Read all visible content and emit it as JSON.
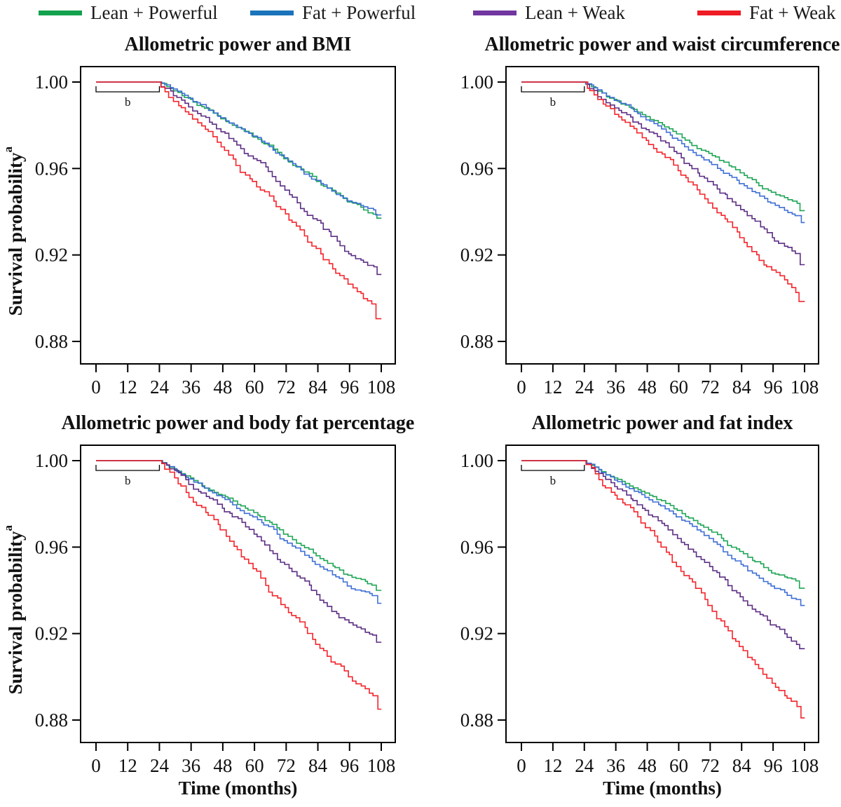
{
  "figure": {
    "background": "#ffffff"
  },
  "legend": {
    "items": [
      {
        "label": "Lean + Powerful",
        "color": "#12a24d"
      },
      {
        "label": "Fat + Powerful",
        "color": "#1b74bb"
      },
      {
        "label": "Lean + Weak",
        "color": "#7136a0"
      },
      {
        "label": "Fat + Weak",
        "color": "#ee1c25"
      }
    ]
  },
  "axes": {
    "y_label": "Survival probability",
    "y_label_superscript": "a",
    "x_label": "Time (months)",
    "y_ticks": [
      "1.00",
      "0.96",
      "0.92",
      "0.88"
    ],
    "x_ticks": [
      0,
      12,
      24,
      36,
      48,
      60,
      72,
      84,
      96,
      108
    ],
    "x_range": [
      0,
      108
    ],
    "y_range": [
      0.87,
      1.005
    ]
  },
  "annotation": {
    "label": "b",
    "span_months": [
      0,
      24
    ]
  },
  "chart_data": [
    {
      "type": "line",
      "km_step": true,
      "title": "Allometric power and BMI",
      "x_control": [
        0,
        24,
        36,
        48,
        60,
        72,
        84,
        96,
        107
      ],
      "series": [
        {
          "name": "Lean + Powerful",
          "line_color": "#1ea556",
          "values": [
            1.0,
            1.0,
            0.992,
            0.983,
            0.9745,
            0.9645,
            0.954,
            0.9445,
            0.937
          ]
        },
        {
          "name": "Fat + Powerful",
          "line_color": "#3f6fd4",
          "values": [
            1.0,
            1.0,
            0.9925,
            0.9835,
            0.975,
            0.965,
            0.9545,
            0.945,
            0.9385
          ]
        },
        {
          "name": "Lean + Weak",
          "line_color": "#5c2d84",
          "values": [
            1.0,
            1.0,
            0.9885,
            0.977,
            0.9645,
            0.95,
            0.936,
            0.9205,
            0.911
          ]
        },
        {
          "name": "Fat + Weak",
          "line_color": "#f3242b",
          "values": [
            1.0,
            1.0,
            0.985,
            0.97,
            0.954,
            0.939,
            0.923,
            0.9065,
            0.8905
          ]
        }
      ]
    },
    {
      "type": "line",
      "km_step": true,
      "title": "Allometric power and waist circumference",
      "x_control": [
        0,
        24,
        36,
        48,
        60,
        72,
        84,
        96,
        107
      ],
      "series": [
        {
          "name": "Lean + Powerful",
          "line_color": "#1ea556",
          "values": [
            1.0,
            1.0,
            0.992,
            0.984,
            0.976,
            0.967,
            0.958,
            0.949,
            0.9405
          ]
        },
        {
          "name": "Fat + Powerful",
          "line_color": "#3f6fd4",
          "values": [
            1.0,
            1.0,
            0.9915,
            0.9825,
            0.973,
            0.963,
            0.953,
            0.944,
            0.935
          ]
        },
        {
          "name": "Lean + Weak",
          "line_color": "#5c2d84",
          "values": [
            1.0,
            1.0,
            0.988,
            0.978,
            0.967,
            0.954,
            0.941,
            0.928,
            0.9155
          ]
        },
        {
          "name": "Fat + Weak",
          "line_color": "#f3242b",
          "values": [
            1.0,
            1.0,
            0.985,
            0.973,
            0.959,
            0.944,
            0.928,
            0.913,
            0.8985
          ]
        }
      ]
    },
    {
      "type": "line",
      "km_step": true,
      "title": "Allometric power and body fat percentage",
      "x_control": [
        0,
        24,
        36,
        48,
        60,
        72,
        84,
        96,
        107
      ],
      "series": [
        {
          "name": "Lean + Powerful",
          "line_color": "#1ea556",
          "values": [
            1.0,
            1.0,
            0.992,
            0.984,
            0.976,
            0.966,
            0.956,
            0.947,
            0.94
          ]
        },
        {
          "name": "Fat + Powerful",
          "line_color": "#3f6fd4",
          "values": [
            1.0,
            1.0,
            0.9915,
            0.983,
            0.974,
            0.963,
            0.952,
            0.942,
            0.934
          ]
        },
        {
          "name": "Lean + Weak",
          "line_color": "#5c2d84",
          "values": [
            1.0,
            1.0,
            0.989,
            0.978,
            0.966,
            0.952,
            0.938,
            0.925,
            0.916
          ]
        },
        {
          "name": "Fat + Weak",
          "line_color": "#f3242b",
          "values": [
            1.0,
            1.0,
            0.983,
            0.968,
            0.95,
            0.932,
            0.915,
            0.9,
            0.885
          ]
        }
      ]
    },
    {
      "type": "line",
      "km_step": true,
      "title": "Allometric power and fat index",
      "x_control": [
        0,
        24,
        36,
        48,
        60,
        72,
        84,
        96,
        107
      ],
      "series": [
        {
          "name": "Lean + Powerful",
          "line_color": "#1ea556",
          "values": [
            1.0,
            1.0,
            0.992,
            0.985,
            0.977,
            0.968,
            0.958,
            0.948,
            0.941
          ]
        },
        {
          "name": "Fat + Powerful",
          "line_color": "#3f6fd4",
          "values": [
            1.0,
            1.0,
            0.991,
            0.983,
            0.974,
            0.964,
            0.952,
            0.942,
            0.933
          ]
        },
        {
          "name": "Lean + Weak",
          "line_color": "#5c2d84",
          "values": [
            1.0,
            1.0,
            0.988,
            0.977,
            0.964,
            0.951,
            0.937,
            0.924,
            0.913
          ]
        },
        {
          "name": "Fat + Weak",
          "line_color": "#f3242b",
          "values": [
            1.0,
            1.0,
            0.984,
            0.969,
            0.951,
            0.933,
            0.914,
            0.897,
            0.881
          ]
        }
      ]
    }
  ]
}
